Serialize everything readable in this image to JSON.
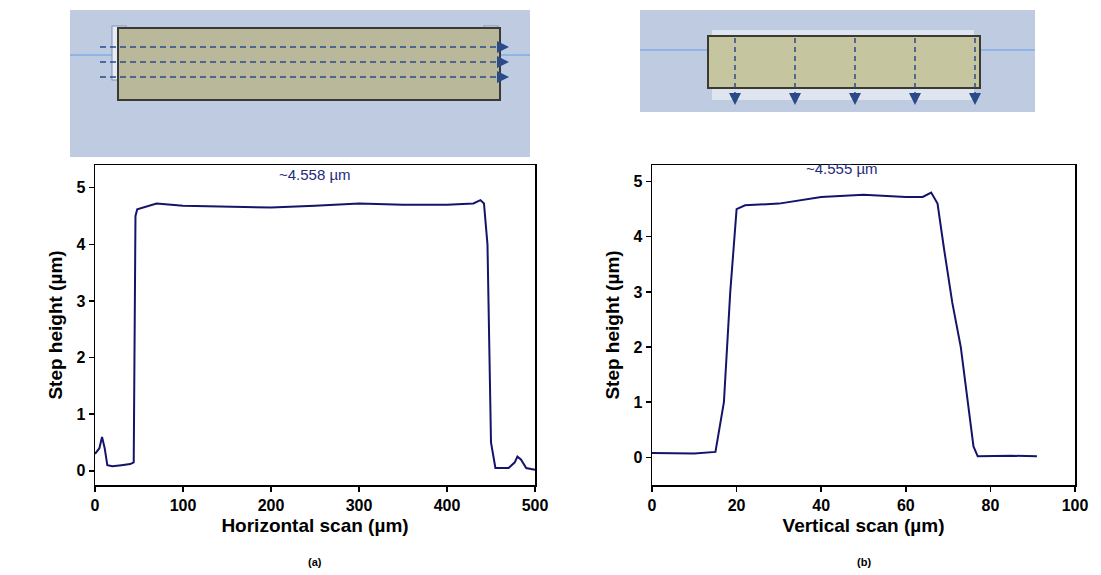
{
  "chart_data": [
    {
      "type": "line",
      "panel_label": "(a)",
      "x_label": "Horizontal scan (µm)",
      "y_label": "Step height (µm)",
      "annotations": [
        {
          "text": "~4.558 µm",
          "x": 250,
          "y": 5.05
        }
      ],
      "series": [
        {
          "color": "#14146b",
          "x": [
            0,
            5,
            8,
            11,
            14,
            20,
            30,
            40,
            44,
            46,
            48,
            55,
            70,
            100,
            150,
            200,
            250,
            300,
            350,
            400,
            430,
            438,
            442,
            446,
            450,
            455,
            470,
            477,
            480,
            484,
            490,
            500
          ],
          "values": [
            0.3,
            0.4,
            0.6,
            0.4,
            0.1,
            0.08,
            0.1,
            0.12,
            0.15,
            4.5,
            4.62,
            4.65,
            4.72,
            4.68,
            4.66,
            4.65,
            4.68,
            4.72,
            4.7,
            4.7,
            4.72,
            4.78,
            4.72,
            4.0,
            0.5,
            0.05,
            0.05,
            0.15,
            0.25,
            0.2,
            0.05,
            0.02
          ]
        }
      ],
      "xlim": [
        0,
        500
      ],
      "xticks": [
        0,
        100,
        200,
        300,
        400,
        500
      ],
      "ylim": [
        -0.25,
        5.4
      ],
      "yticks": [
        0,
        1,
        2,
        3,
        4,
        5
      ],
      "grid": false
    },
    {
      "type": "line",
      "panel_label": "(b)",
      "x_label": "Vertical scan (µm)",
      "y_label": "Step height (µm)",
      "annotations": [
        {
          "text": "~4.555 µm",
          "x": 45,
          "y": 5.05
        }
      ],
      "series": [
        {
          "color": "#14146b",
          "x": [
            0,
            10,
            15,
            17,
            18.5,
            20,
            22,
            30,
            40,
            50,
            60,
            64,
            66,
            67.5,
            69,
            71,
            73,
            75,
            76,
            77,
            85,
            91
          ],
          "values": [
            0.08,
            0.07,
            0.1,
            1.0,
            3.0,
            4.5,
            4.57,
            4.6,
            4.72,
            4.76,
            4.72,
            4.72,
            4.8,
            4.6,
            3.8,
            2.8,
            2.0,
            0.8,
            0.2,
            0.02,
            0.03,
            0.02
          ]
        }
      ],
      "xlim": [
        0,
        100
      ],
      "xticks": [
        0,
        20,
        40,
        60,
        80,
        100
      ],
      "ylim": [
        -0.5,
        5.3
      ],
      "yticks": [
        0,
        1,
        2,
        3,
        4,
        5
      ],
      "grid": false
    }
  ]
}
